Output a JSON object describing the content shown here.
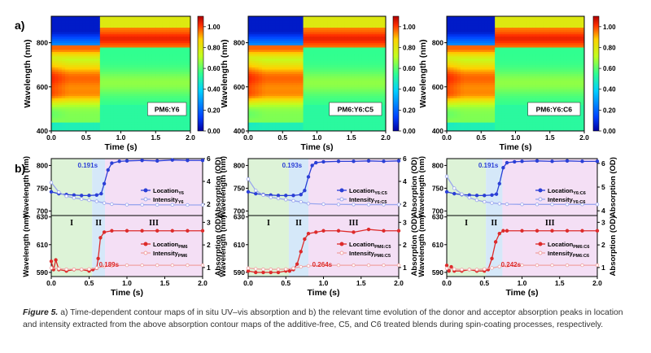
{
  "figure": {
    "caption_label": "Figure 5.",
    "caption_text": "a) Time-dependent contour maps of in situ UV–vis absorption and b) the relevant time evolution of the donor and acceptor absorption peaks in location and intensity extracted from the above absorption contour maps of the additive-free, C5, and C6 treated blends during spin-coating processes, respectively."
  },
  "chart_data": [
    {
      "type": "heatmap",
      "panel": "a",
      "panel_label": "a)",
      "label": "PM6:Y6",
      "xlabel": "Time (s)",
      "ylabel": "Wavelength (nm)",
      "xticks": [
        "0.0",
        "0.5",
        "1.0",
        "1.5",
        "2.0"
      ],
      "yticks": [
        "400",
        "600",
        "800"
      ],
      "xlim": [
        0,
        2.0
      ],
      "ylim": [
        400,
        920
      ],
      "colorbar_ticks": [
        "0.00",
        "0.20",
        "0.40",
        "0.60",
        "0.80",
        "1.00"
      ],
      "colorbar_range": [
        0,
        1.1
      ],
      "transition_time": 0.69
    },
    {
      "type": "heatmap",
      "panel": "a",
      "label": "PM6:Y6:C5",
      "xlabel": "Time (s)",
      "ylabel": "Wavelength (nm)",
      "xticks": [
        "0.0",
        "0.5",
        "1.0",
        "1.5",
        "2.0"
      ],
      "yticks": [
        "400",
        "600",
        "800"
      ],
      "xlim": [
        0,
        2.0
      ],
      "ylim": [
        400,
        920
      ],
      "colorbar_ticks": [
        "0.00",
        "0.20",
        "0.40",
        "0.60",
        "0.80",
        "1.00"
      ],
      "colorbar_range": [
        0,
        1.1
      ],
      "transition_time": 0.79
    },
    {
      "type": "heatmap",
      "panel": "a",
      "label": "PM6:Y6:C6",
      "xlabel": "Time (s)",
      "ylabel": "Wavelength (nm)",
      "xticks": [
        "0.0",
        "0.5",
        "1.0",
        "1.5",
        "2.0"
      ],
      "yticks": [
        "400",
        "600",
        "800"
      ],
      "xlim": [
        0,
        2.0
      ],
      "ylim": [
        400,
        920
      ],
      "colorbar_ticks": [
        "0.00",
        "0.20",
        "0.40",
        "0.60",
        "0.80",
        "1.00"
      ],
      "colorbar_range": [
        0,
        1.1
      ],
      "transition_time": 0.69
    },
    {
      "type": "line",
      "panel": "b",
      "panel_label": "b)",
      "xlabel": "Time (s)",
      "xticks": [
        "0.0",
        "0.5",
        "1.0",
        "1.5",
        "2.0"
      ],
      "xlim": [
        0,
        2.0
      ],
      "top": {
        "ylabel": "Wavelength (nm)",
        "yticks": [
          "700",
          "750",
          "800"
        ],
        "ylim": [
          690,
          815
        ],
        "y2label": "Absorption (OD)",
        "y2ticks": [
          "2",
          "4",
          "6"
        ],
        "y2lim": [
          1,
          6
        ],
        "series": [
          {
            "name": "Location_Y6",
            "label_main": "Location",
            "label_sub": "Y6",
            "color": "#2b3fd6",
            "x": [
              0,
              0.1,
              0.2,
              0.3,
              0.4,
              0.5,
              0.6,
              0.66,
              0.7,
              0.75,
              0.8,
              0.9,
              1.0,
              1.2,
              1.4,
              1.6,
              1.8,
              2.0
            ],
            "y": [
              742,
              738,
              736,
              735,
              734,
              734,
              735,
              738,
              760,
              790,
              805,
              809,
              810,
              811,
              810,
              812,
              811,
              811
            ]
          },
          {
            "name": "Intensity_Y6",
            "label_main": "Intensity",
            "label_sub": "Y6",
            "color": "#9aa6ee",
            "x": [
              0,
              0.1,
              0.2,
              0.3,
              0.4,
              0.5,
              0.6,
              0.7,
              0.8,
              1.0,
              1.2,
              1.4,
              1.6,
              1.8,
              2.0
            ],
            "y": [
              3.9,
              3.05,
              2.7,
              2.55,
              2.45,
              2.35,
              2.25,
              2.1,
              2.0,
              1.95,
              1.95,
              1.94,
              1.94,
              1.93,
              1.93
            ]
          }
        ],
        "annotation": {
          "text": "0.191s",
          "x": 0.35,
          "y": 795
        }
      },
      "bottom": {
        "ylabel": "Wavelength (nm)",
        "yticks": [
          "590",
          "610",
          "630"
        ],
        "ylim": [
          587,
          631
        ],
        "y2label": "Absorption (OD)",
        "y2ticks": [
          "1",
          "2",
          "3"
        ],
        "y2lim": [
          0.6,
          3.3
        ],
        "series": [
          {
            "name": "Location_PM6",
            "label_main": "Location",
            "label_sub": "PM6",
            "color": "#dd2b2b",
            "x": [
              0,
              0.03,
              0.06,
              0.1,
              0.2,
              0.3,
              0.4,
              0.5,
              0.55,
              0.6,
              0.62,
              0.65,
              0.7,
              0.8,
              1.0,
              1.2,
              1.4,
              1.6,
              1.8,
              2.0
            ],
            "y": [
              598,
              592,
              599,
              592,
              591,
              592,
              592,
              591,
              592,
              593,
              600,
              615,
              619,
              620,
              620,
              620,
              620,
              620,
              620,
              620
            ]
          },
          {
            "name": "Intensity_PM6",
            "label_main": "Intensity",
            "label_sub": "PM6",
            "color": "#f0a3a3",
            "x": [
              0,
              0.1,
              0.2,
              0.3,
              0.4,
              0.5,
              0.6,
              0.7,
              0.8,
              1.0,
              1.2,
              1.4,
              1.6,
              1.8,
              2.0
            ],
            "y": [
              0.98,
              0.95,
              0.92,
              0.92,
              0.92,
              0.93,
              0.98,
              1.05,
              1.08,
              1.1,
              1.1,
              1.1,
              1.1,
              1.1,
              1.1
            ]
          }
        ],
        "annotation": {
          "text": "0.189s",
          "x": 0.63,
          "y": 594
        }
      },
      "regions": {
        "labels": [
          "I",
          "II",
          "III"
        ],
        "bounds": [
          0,
          0.54,
          0.71,
          2.0
        ]
      }
    },
    {
      "type": "line",
      "panel": "b",
      "xlabel": "Time (s)",
      "xticks": [
        "0.0",
        "0.5",
        "1.0",
        "1.5",
        "2.0"
      ],
      "xlim": [
        0,
        2.0
      ],
      "top": {
        "ylabel": "Wavelength (nm)",
        "yticks": [
          "700",
          "750",
          "800"
        ],
        "ylim": [
          690,
          815
        ],
        "y2label": "Absorption (OD)",
        "y2ticks": [
          "2",
          "4",
          "6"
        ],
        "y2lim": [
          1,
          6
        ],
        "series": [
          {
            "name": "Location_Y6:C5",
            "label_main": "Location",
            "label_sub": "Y6:C5",
            "color": "#2b3fd6",
            "x": [
              0,
              0.1,
              0.2,
              0.3,
              0.4,
              0.5,
              0.6,
              0.7,
              0.75,
              0.8,
              0.85,
              0.9,
              1.0,
              1.2,
              1.4,
              1.6,
              1.8,
              2.0
            ],
            "y": [
              742,
              738,
              736,
              735,
              734,
              734,
              734,
              736,
              745,
              775,
              800,
              806,
              808,
              809,
              809,
              810,
              809,
              810
            ]
          },
          {
            "name": "Intensity_Y6:C5",
            "label_main": "Intensity",
            "label_sub": "Y6:C5",
            "color": "#9aa6ee",
            "x": [
              0,
              0.1,
              0.2,
              0.3,
              0.4,
              0.5,
              0.6,
              0.7,
              0.8,
              1.0,
              1.2,
              1.4,
              1.6,
              1.8,
              2.0
            ],
            "y": [
              4.2,
              3.2,
              2.8,
              2.6,
              2.5,
              2.4,
              2.3,
              2.2,
              2.05,
              2.0,
              1.98,
              1.97,
              1.96,
              1.96,
              1.96
            ]
          }
        ],
        "annotation": {
          "text": "0.193s",
          "x": 0.45,
          "y": 795
        }
      },
      "bottom": {
        "ylabel": "Wavelength (nm)",
        "yticks": [
          "590",
          "610",
          "630"
        ],
        "ylim": [
          587,
          631
        ],
        "y2label": "Absorption (OD)",
        "y2ticks": [
          "1",
          "2",
          "3"
        ],
        "y2lim": [
          0.6,
          3.3
        ],
        "series": [
          {
            "name": "Location_PM6:C5",
            "label_main": "Location",
            "label_sub": "PM6:C5",
            "color": "#dd2b2b",
            "x": [
              0,
              0.1,
              0.2,
              0.3,
              0.4,
              0.5,
              0.55,
              0.6,
              0.65,
              0.7,
              0.75,
              0.8,
              0.9,
              1.0,
              1.2,
              1.4,
              1.6,
              1.8,
              2.0
            ],
            "y": [
              591,
              590,
              590,
              590,
              590,
              591,
              591,
              592,
              596,
              605,
              614,
              618,
              619,
              620,
              620,
              619,
              621,
              620,
              620
            ]
          },
          {
            "name": "Intensity_PM6:C5",
            "label_main": "Intensity",
            "label_sub": "PM6:C5",
            "color": "#f0a3a3",
            "x": [
              0,
              0.1,
              0.2,
              0.3,
              0.4,
              0.5,
              0.6,
              0.7,
              0.8,
              1.0,
              1.2,
              1.4,
              1.6,
              1.8,
              2.0
            ],
            "y": [
              0.97,
              0.94,
              0.92,
              0.92,
              0.92,
              0.93,
              0.97,
              1.03,
              1.07,
              1.1,
              1.1,
              1.1,
              1.1,
              1.1,
              1.1
            ]
          }
        ],
        "annotation": {
          "text": "0.264s",
          "x": 0.85,
          "y": 594
        }
      },
      "regions": {
        "labels": [
          "I",
          "II",
          "III"
        ],
        "bounds": [
          0,
          0.54,
          0.8,
          2.0
        ]
      }
    },
    {
      "type": "line",
      "panel": "b",
      "xlabel": "Time (s)",
      "xticks": [
        "0.0",
        "0.5",
        "1.0",
        "1.5",
        "2.0"
      ],
      "xlim": [
        0,
        2.0
      ],
      "top": {
        "ylabel": "Wavelength (nm)",
        "yticks": [
          "700",
          "750",
          "800"
        ],
        "ylim": [
          690,
          815
        ],
        "y2label": "Absorption (OD)",
        "y2ticks": [
          "4",
          "5",
          "6"
        ],
        "y2lim": [
          3.8,
          6.2
        ],
        "series": [
          {
            "name": "Location_Y6:C6",
            "label_main": "Location",
            "label_sub": "Y6:C6",
            "color": "#2b3fd6",
            "x": [
              0,
              0.1,
              0.2,
              0.3,
              0.4,
              0.5,
              0.6,
              0.66,
              0.7,
              0.75,
              0.8,
              0.9,
              1.0,
              1.2,
              1.4,
              1.6,
              1.8,
              2.0
            ],
            "y": [
              742,
              738,
              736,
              735,
              734,
              734,
              735,
              737,
              760,
              795,
              806,
              808,
              809,
              810,
              809,
              810,
              809,
              809
            ]
          },
          {
            "name": "Intensity_Y6:C6",
            "label_main": "Intensity",
            "label_sub": "Y6:C6",
            "color": "#9aa6ee",
            "x": [
              0,
              0.1,
              0.2,
              0.3,
              0.4,
              0.5,
              0.6,
              0.7,
              0.8,
              1.0,
              1.2,
              1.4,
              1.6,
              1.8,
              2.0
            ],
            "y": [
              5.45,
              4.95,
              4.7,
              4.55,
              4.45,
              4.38,
              4.33,
              4.3,
              4.28,
              4.27,
              4.27,
              4.27,
              4.27,
              4.27,
              4.27
            ]
          }
        ],
        "annotation": {
          "text": "0.191s",
          "x": 0.42,
          "y": 795
        }
      },
      "bottom": {
        "ylabel": "Wavelength (nm)",
        "yticks": [
          "590",
          "610",
          "630"
        ],
        "ylim": [
          587,
          631
        ],
        "y2label": "Absorption (OD)",
        "y2ticks": [
          "1",
          "2",
          "3"
        ],
        "y2lim": [
          0.6,
          3.3
        ],
        "series": [
          {
            "name": "Location_PM6:C6",
            "label_main": "Location",
            "label_sub": "PM6:C6",
            "color": "#dd2b2b",
            "x": [
              0,
              0.03,
              0.06,
              0.1,
              0.2,
              0.3,
              0.4,
              0.5,
              0.55,
              0.6,
              0.65,
              0.7,
              0.75,
              0.8,
              1.0,
              1.2,
              1.4,
              1.6,
              1.8,
              2.0
            ],
            "y": [
              595,
              591,
              594,
              591,
              591,
              592,
              591,
              591,
              592,
              600,
              612,
              618,
              620,
              620,
              620,
              620,
              620,
              620,
              620,
              620
            ]
          },
          {
            "name": "Intensity_PM6:C6",
            "label_main": "Intensity",
            "label_sub": "PM6:C6",
            "color": "#f0a3a3",
            "x": [
              0,
              0.1,
              0.2,
              0.3,
              0.4,
              0.5,
              0.6,
              0.7,
              0.8,
              1.0,
              1.2,
              1.4,
              1.6,
              1.8,
              2.0
            ],
            "y": [
              0.96,
              0.93,
              0.91,
              0.91,
              0.91,
              0.93,
              0.98,
              1.04,
              1.07,
              1.1,
              1.1,
              1.1,
              1.1,
              1.1,
              1.1
            ]
          }
        ],
        "annotation": {
          "text": "0.242s",
          "x": 0.72,
          "y": 594
        }
      },
      "regions": {
        "labels": [
          "I",
          "II",
          "III"
        ],
        "bounds": [
          0,
          0.52,
          0.74,
          2.0
        ]
      }
    }
  ]
}
